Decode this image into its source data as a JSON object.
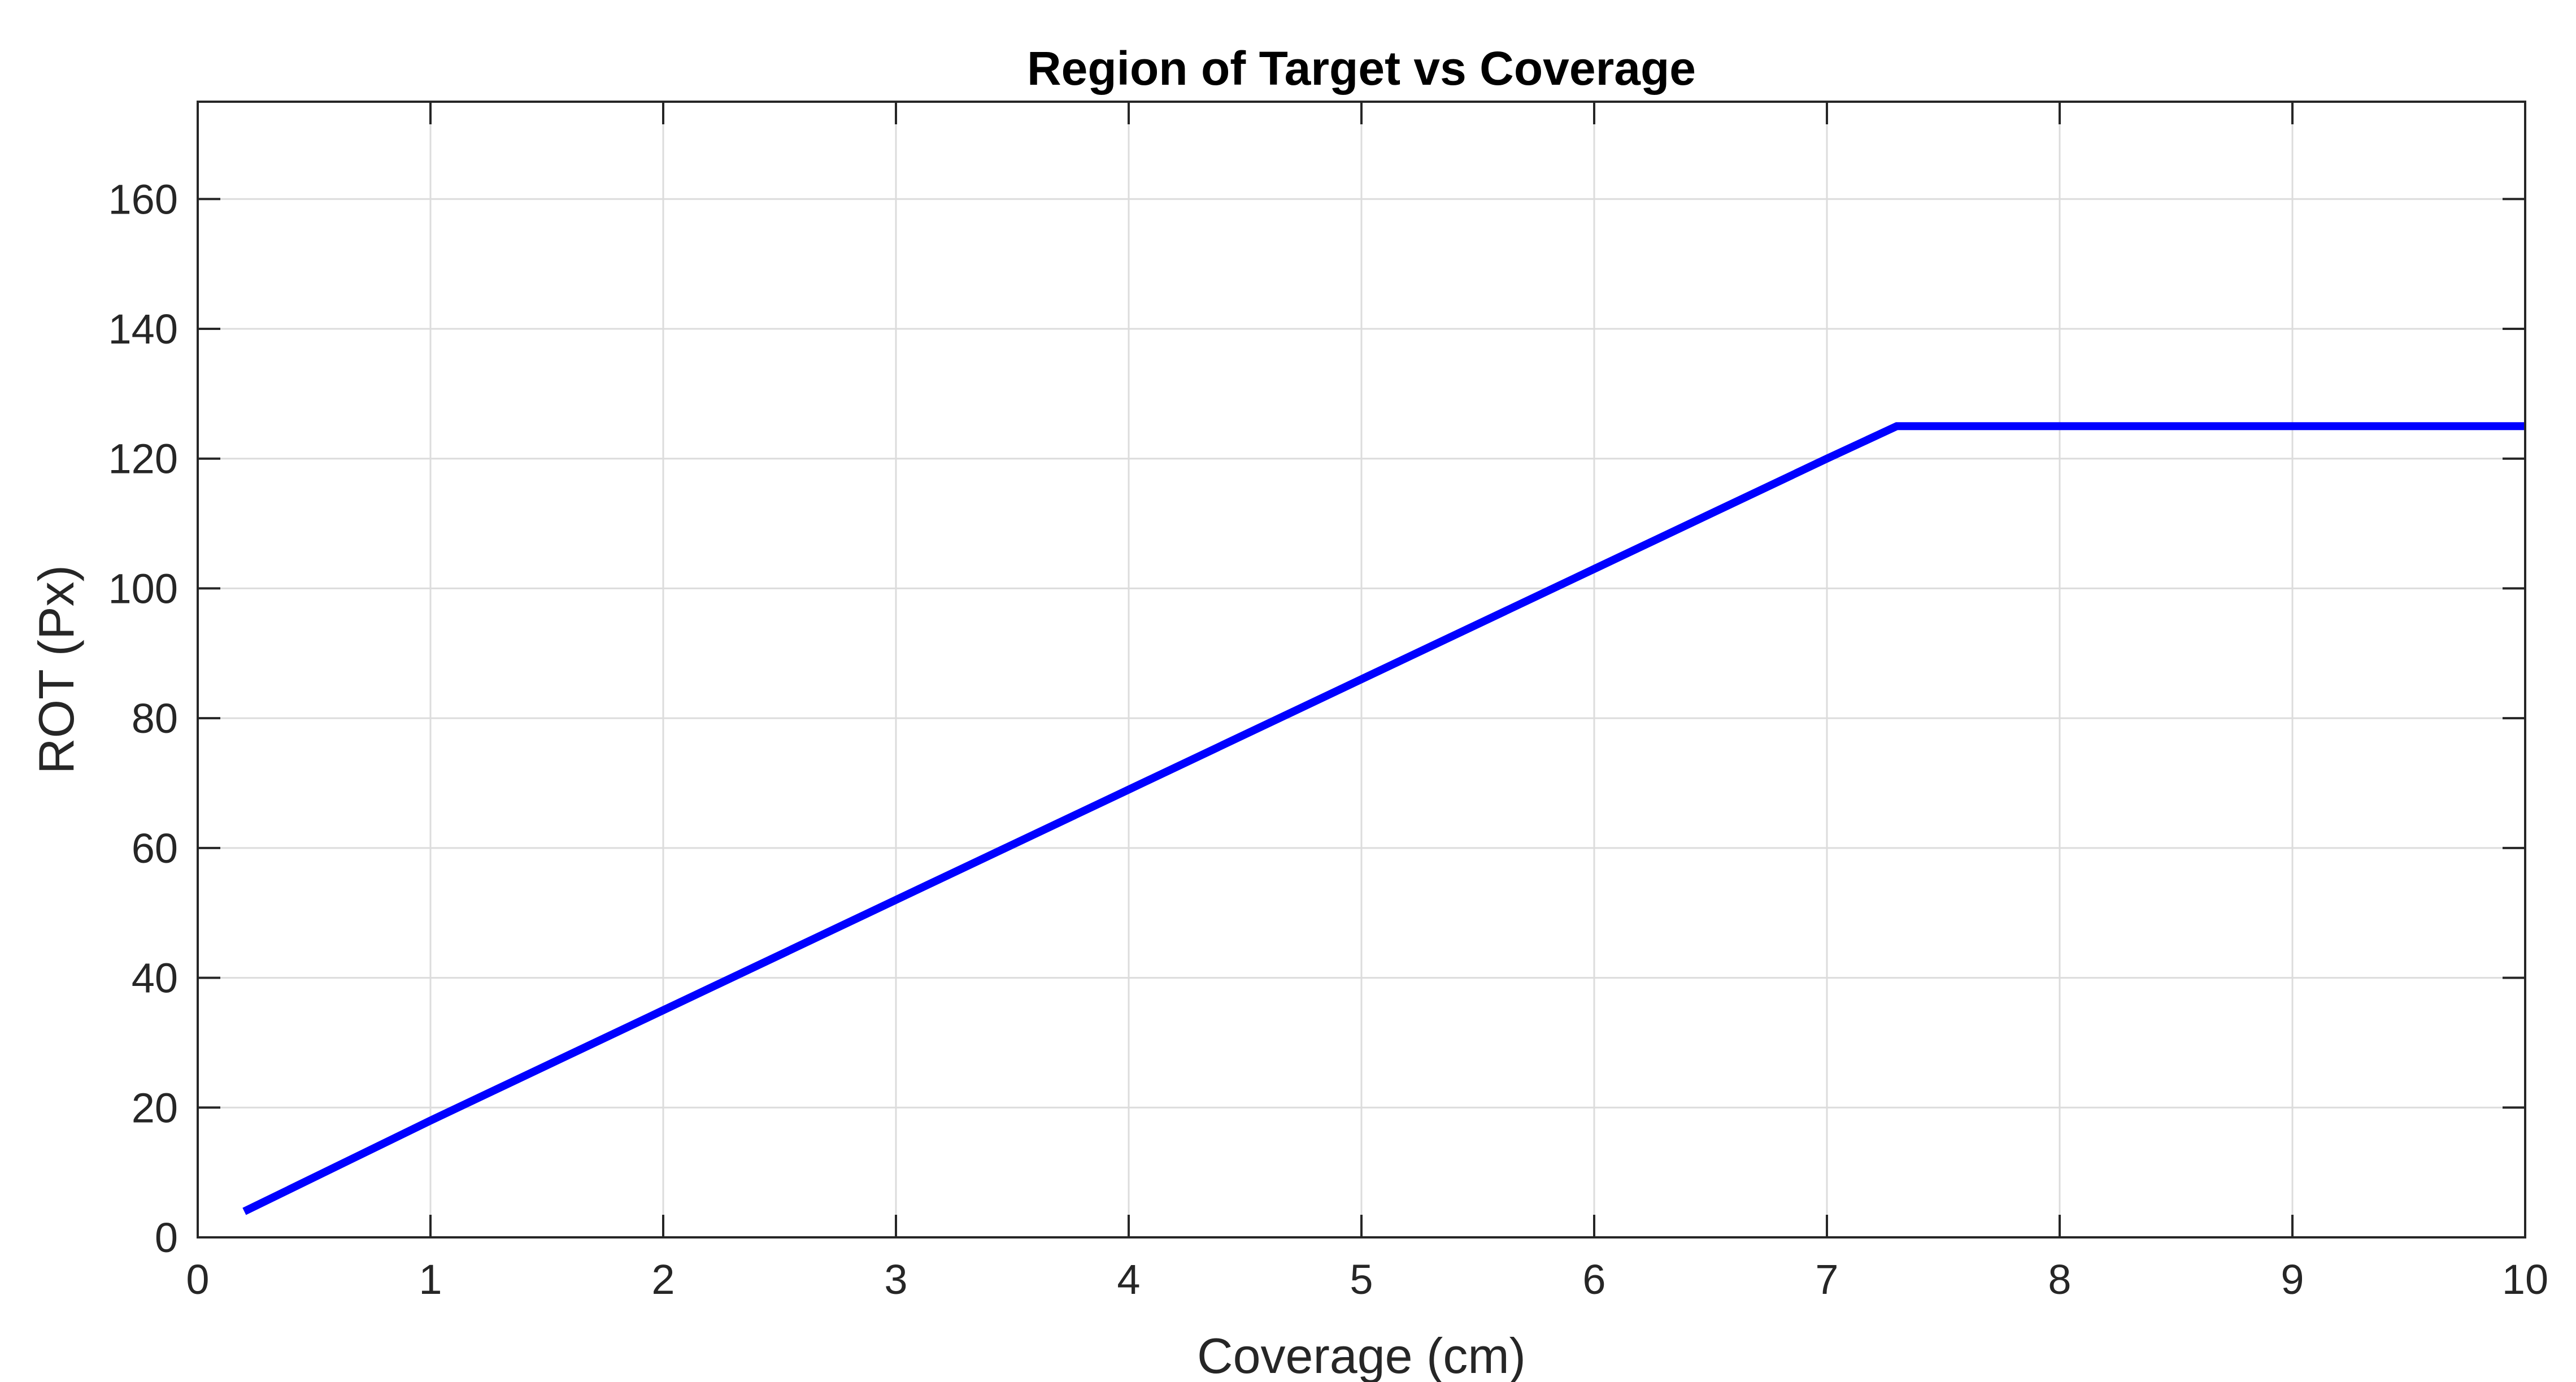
{
  "chart_data": {
    "type": "line",
    "title": "Region of Target vs Coverage",
    "xlabel": "Coverage (cm)",
    "ylabel": "ROT (Px)",
    "xlim": [
      0,
      10
    ],
    "ylim": [
      0,
      175
    ],
    "xticks": [
      0,
      1,
      2,
      3,
      4,
      5,
      6,
      7,
      8,
      9,
      10
    ],
    "yticks": [
      0,
      20,
      40,
      60,
      80,
      100,
      120,
      140,
      160
    ],
    "xtick_labels": [
      "0",
      "1",
      "2",
      "3",
      "4",
      "5",
      "6",
      "7",
      "8",
      "9",
      "10"
    ],
    "ytick_labels": [
      "0",
      "20",
      "40",
      "60",
      "80",
      "100",
      "120",
      "140",
      "160"
    ],
    "grid": true,
    "series": [
      {
        "color": "#0000ff",
        "x": [
          0.2,
          1,
          2,
          3,
          4,
          5,
          6,
          7,
          7.3,
          8,
          9,
          10
        ],
        "y": [
          4,
          18,
          35,
          52,
          69,
          86,
          103,
          120,
          125,
          125,
          125,
          125
        ]
      }
    ]
  }
}
